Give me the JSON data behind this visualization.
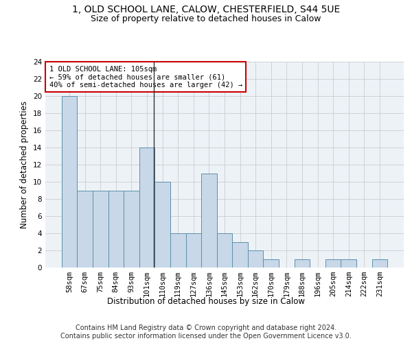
{
  "title": "1, OLD SCHOOL LANE, CALOW, CHESTERFIELD, S44 5UE",
  "subtitle": "Size of property relative to detached houses in Calow",
  "xlabel": "Distribution of detached houses by size in Calow",
  "ylabel": "Number of detached properties",
  "footer_line1": "Contains HM Land Registry data © Crown copyright and database right 2024.",
  "footer_line2": "Contains public sector information licensed under the Open Government Licence v3.0.",
  "bar_labels": [
    "58sqm",
    "67sqm",
    "75sqm",
    "84sqm",
    "93sqm",
    "101sqm",
    "110sqm",
    "119sqm",
    "127sqm",
    "136sqm",
    "145sqm",
    "153sqm",
    "162sqm",
    "170sqm",
    "179sqm",
    "188sqm",
    "196sqm",
    "205sqm",
    "214sqm",
    "222sqm",
    "231sqm"
  ],
  "bar_values": [
    20,
    9,
    9,
    9,
    9,
    14,
    10,
    4,
    4,
    11,
    4,
    3,
    2,
    1,
    0,
    1,
    0,
    1,
    1,
    0,
    1
  ],
  "bar_color": "#c8d8e8",
  "bar_edge_color": "#5b8fa8",
  "property_label": "1 OLD SCHOOL LANE: 105sqm",
  "annotation_line1": "← 59% of detached houses are smaller (61)",
  "annotation_line2": "40% of semi-detached houses are larger (42) →",
  "annotation_box_color": "#ffffff",
  "annotation_box_edge_color": "#cc0000",
  "property_line_color": "#333333",
  "property_line_x": 5.44,
  "ylim": [
    0,
    24
  ],
  "yticks": [
    0,
    2,
    4,
    6,
    8,
    10,
    12,
    14,
    16,
    18,
    20,
    22,
    24
  ],
  "grid_color": "#cccccc",
  "background_color": "#edf2f7",
  "title_fontsize": 10,
  "subtitle_fontsize": 9,
  "axis_label_fontsize": 8.5,
  "tick_fontsize": 7.5,
  "annotation_fontsize": 7.5,
  "footer_fontsize": 7
}
